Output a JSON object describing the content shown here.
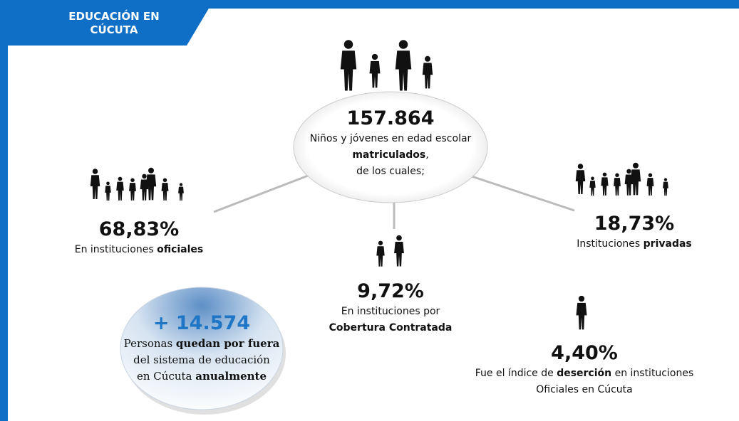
{
  "header": {
    "title_lines": [
      "EDUCACIÓN EN",
      "CÚCUTA"
    ]
  },
  "center": {
    "number": "157.864",
    "lines": [
      [
        {
          "text": "Niños y jóvenes en edad escolar"
        }
      ],
      [
        {
          "text": "matriculados",
          "bold": true
        },
        {
          "text": ","
        }
      ],
      [
        {
          "text": "de los cuales;"
        }
      ]
    ]
  },
  "items": [
    {
      "number": "68,83%",
      "lines": [
        [
          {
            "text": "En instituciones "
          },
          {
            "text": "oficiales",
            "bold": true
          }
        ]
      ]
    },
    {
      "number": "9,72%",
      "lines": [
        [
          {
            "text": "En instituciones por"
          }
        ],
        [
          {
            "text": "Cobertura Contratada",
            "bold": true
          }
        ]
      ]
    },
    {
      "number": "18,73%",
      "lines": [
        [
          {
            "text": "Instituciones "
          },
          {
            "text": "privadas",
            "bold": true
          }
        ]
      ]
    },
    {
      "number": "4,40%",
      "lines": [
        [
          {
            "text": "Fue el índice de "
          },
          {
            "text": "deserción",
            "bold": true
          },
          {
            "text": " en instituciones"
          }
        ],
        [
          {
            "text": "Oficiales en Cúcuta"
          }
        ]
      ]
    }
  ],
  "bubble": {
    "number": "+ 14.574",
    "lines": [
      [
        {
          "text": "Personas "
        },
        {
          "text": "quedan por fuera",
          "bold": true
        }
      ],
      [
        {
          "text": "del sistema de educación"
        }
      ],
      [
        {
          "text": "en Cúcuta "
        },
        {
          "text": "anualmente",
          "bold": true
        }
      ]
    ]
  }
}
